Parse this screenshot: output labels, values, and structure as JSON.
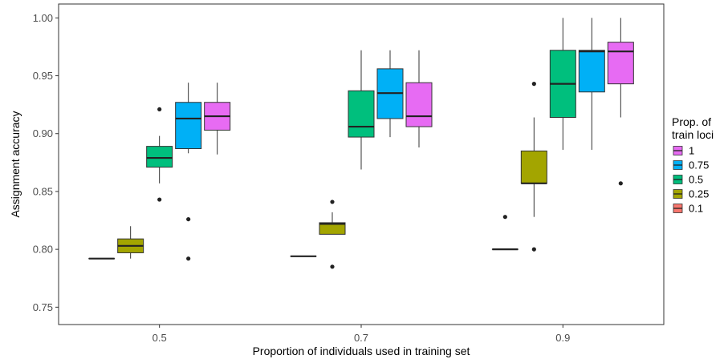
{
  "chart_data": {
    "type": "boxplot",
    "xlabel": "Proportion of individuals used in training set",
    "ylabel": "Assignment accuracy",
    "categories": [
      "0.5",
      "0.7",
      "0.9"
    ],
    "ylim": [
      0.735,
      1.012
    ],
    "yticks": [
      "0.75",
      "0.80",
      "0.85",
      "0.90",
      "0.95",
      "1.00"
    ],
    "grid": false,
    "legend": {
      "title_lines": [
        "Prop. of",
        "train loci"
      ],
      "placement": "right",
      "entries": [
        {
          "label": "1",
          "color": "#E76BF3"
        },
        {
          "label": "0.75",
          "color": "#00B0F6"
        },
        {
          "label": "0.5",
          "color": "#00BF7D"
        },
        {
          "label": "0.25",
          "color": "#A3A500"
        },
        {
          "label": "0.1",
          "color": "#F8766D"
        }
      ]
    },
    "series": [
      {
        "name": "0.1",
        "color": "#F8766D",
        "boxes": [
          {
            "category": "0.5",
            "whisker_low": 0.792,
            "q1": 0.792,
            "median": 0.792,
            "q3": 0.792,
            "whisker_high": 0.792,
            "outliers": []
          },
          {
            "category": "0.7",
            "whisker_low": 0.794,
            "q1": 0.794,
            "median": 0.794,
            "q3": 0.794,
            "whisker_high": 0.794,
            "outliers": []
          },
          {
            "category": "0.9",
            "whisker_low": 0.8,
            "q1": 0.8,
            "median": 0.8,
            "q3": 0.8,
            "whisker_high": 0.8,
            "outliers": [
              0.828
            ]
          }
        ]
      },
      {
        "name": "0.25",
        "color": "#A3A500",
        "boxes": [
          {
            "category": "0.5",
            "whisker_low": 0.792,
            "q1": 0.797,
            "median": 0.803,
            "q3": 0.809,
            "whisker_high": 0.82,
            "outliers": []
          },
          {
            "category": "0.7",
            "whisker_low": 0.813,
            "q1": 0.813,
            "median": 0.822,
            "q3": 0.823,
            "whisker_high": 0.832,
            "outliers": [
              0.841,
              0.785
            ]
          },
          {
            "category": "0.9",
            "whisker_low": 0.828,
            "q1": 0.857,
            "median": 0.857,
            "q3": 0.885,
            "whisker_high": 0.914,
            "outliers": [
              0.943,
              0.8
            ]
          }
        ]
      },
      {
        "name": "0.5",
        "color": "#00BF7D",
        "boxes": [
          {
            "category": "0.5",
            "whisker_low": 0.857,
            "q1": 0.871,
            "median": 0.879,
            "q3": 0.889,
            "whisker_high": 0.898,
            "outliers": [
              0.921,
              0.843
            ]
          },
          {
            "category": "0.7",
            "whisker_low": 0.869,
            "q1": 0.897,
            "median": 0.906,
            "q3": 0.937,
            "whisker_high": 0.972,
            "outliers": []
          },
          {
            "category": "0.9",
            "whisker_low": 0.886,
            "q1": 0.914,
            "median": 0.943,
            "q3": 0.972,
            "whisker_high": 1.0,
            "outliers": []
          }
        ]
      },
      {
        "name": "0.75",
        "color": "#00B0F6",
        "boxes": [
          {
            "category": "0.5",
            "whisker_low": 0.883,
            "q1": 0.887,
            "median": 0.913,
            "q3": 0.927,
            "whisker_high": 0.944,
            "outliers": [
              0.826,
              0.792
            ]
          },
          {
            "category": "0.7",
            "whisker_low": 0.897,
            "q1": 0.913,
            "median": 0.935,
            "q3": 0.956,
            "whisker_high": 0.972,
            "outliers": []
          },
          {
            "category": "0.9",
            "whisker_low": 0.886,
            "q1": 0.936,
            "median": 0.971,
            "q3": 0.972,
            "whisker_high": 1.0,
            "outliers": []
          }
        ]
      },
      {
        "name": "1",
        "color": "#E76BF3",
        "boxes": [
          {
            "category": "0.5",
            "whisker_low": 0.882,
            "q1": 0.903,
            "median": 0.915,
            "q3": 0.927,
            "whisker_high": 0.944,
            "outliers": []
          },
          {
            "category": "0.7",
            "whisker_low": 0.888,
            "q1": 0.906,
            "median": 0.915,
            "q3": 0.944,
            "whisker_high": 0.972,
            "outliers": []
          },
          {
            "category": "0.9",
            "whisker_low": 0.914,
            "q1": 0.943,
            "median": 0.971,
            "q3": 0.979,
            "whisker_high": 1.0,
            "outliers": [
              0.857
            ]
          }
        ]
      }
    ]
  }
}
